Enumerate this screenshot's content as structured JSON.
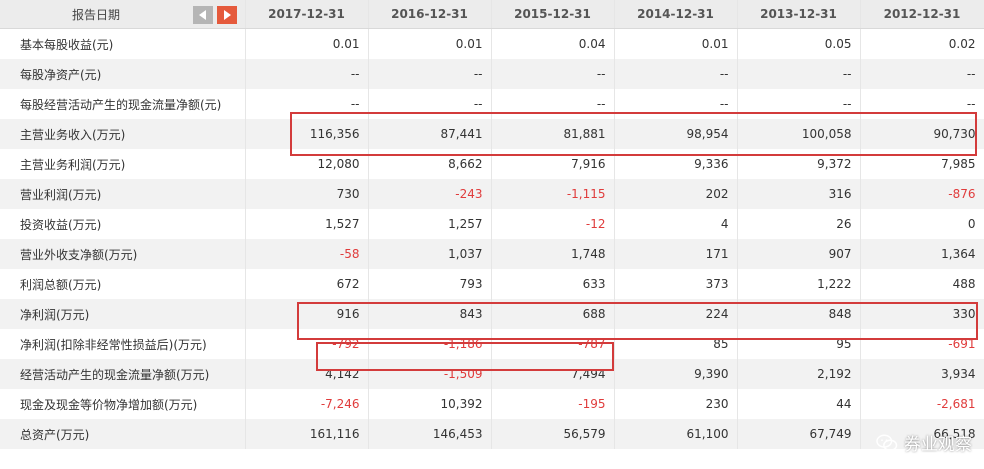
{
  "header": {
    "label": "报告日期",
    "dates": [
      "2017-12-31",
      "2016-12-31",
      "2015-12-31",
      "2014-12-31",
      "2013-12-31",
      "2012-12-31"
    ]
  },
  "rows": [
    {
      "label": "基本每股收益(元)",
      "values": [
        "0.01",
        "0.01",
        "0.04",
        "0.01",
        "0.05",
        "0.02"
      ]
    },
    {
      "label": "每股净资产(元)",
      "values": [
        "--",
        "--",
        "--",
        "--",
        "--",
        "--"
      ]
    },
    {
      "label": "每股经营活动产生的现金流量净额(元)",
      "values": [
        "--",
        "--",
        "--",
        "--",
        "--",
        "--"
      ]
    },
    {
      "label": "主营业务收入(万元)",
      "values": [
        "116,356",
        "87,441",
        "81,881",
        "98,954",
        "100,058",
        "90,730"
      ]
    },
    {
      "label": "主营业务利润(万元)",
      "values": [
        "12,080",
        "8,662",
        "7,916",
        "9,336",
        "9,372",
        "7,985"
      ]
    },
    {
      "label": "营业利润(万元)",
      "values": [
        "730",
        "-243",
        "-1,115",
        "202",
        "316",
        "-876"
      ]
    },
    {
      "label": "投资收益(万元)",
      "values": [
        "1,527",
        "1,257",
        "-12",
        "4",
        "26",
        "0"
      ]
    },
    {
      "label": "营业外收支净额(万元)",
      "values": [
        "-58",
        "1,037",
        "1,748",
        "171",
        "907",
        "1,364"
      ]
    },
    {
      "label": "利润总额(万元)",
      "values": [
        "672",
        "793",
        "633",
        "373",
        "1,222",
        "488"
      ]
    },
    {
      "label": "净利润(万元)",
      "values": [
        "916",
        "843",
        "688",
        "224",
        "848",
        "330"
      ]
    },
    {
      "label": "净利润(扣除非经常性损益后)(万元)",
      "values": [
        "-792",
        "-1,186",
        "-787",
        "85",
        "95",
        "-691"
      ]
    },
    {
      "label": "经营活动产生的现金流量净额(万元)",
      "values": [
        "4,142",
        "-1,509",
        "7,494",
        "9,390",
        "2,192",
        "3,934"
      ]
    },
    {
      "label": "现金及现金等价物净增加额(万元)",
      "values": [
        "-7,246",
        "10,392",
        "-195",
        "230",
        "44",
        "-2,681"
      ]
    },
    {
      "label": "总资产(万元)",
      "values": [
        "161,116",
        "146,453",
        "56,579",
        "61,100",
        "67,749",
        "66,518"
      ]
    }
  ],
  "watermark": {
    "text": "券业观察",
    "icon": "wechat-icon"
  },
  "colors": {
    "negative": "#e03c3c",
    "highlight": "#d33b3b",
    "nav_next": "#e55a3c",
    "nav_prev": "#b5b5b5"
  }
}
